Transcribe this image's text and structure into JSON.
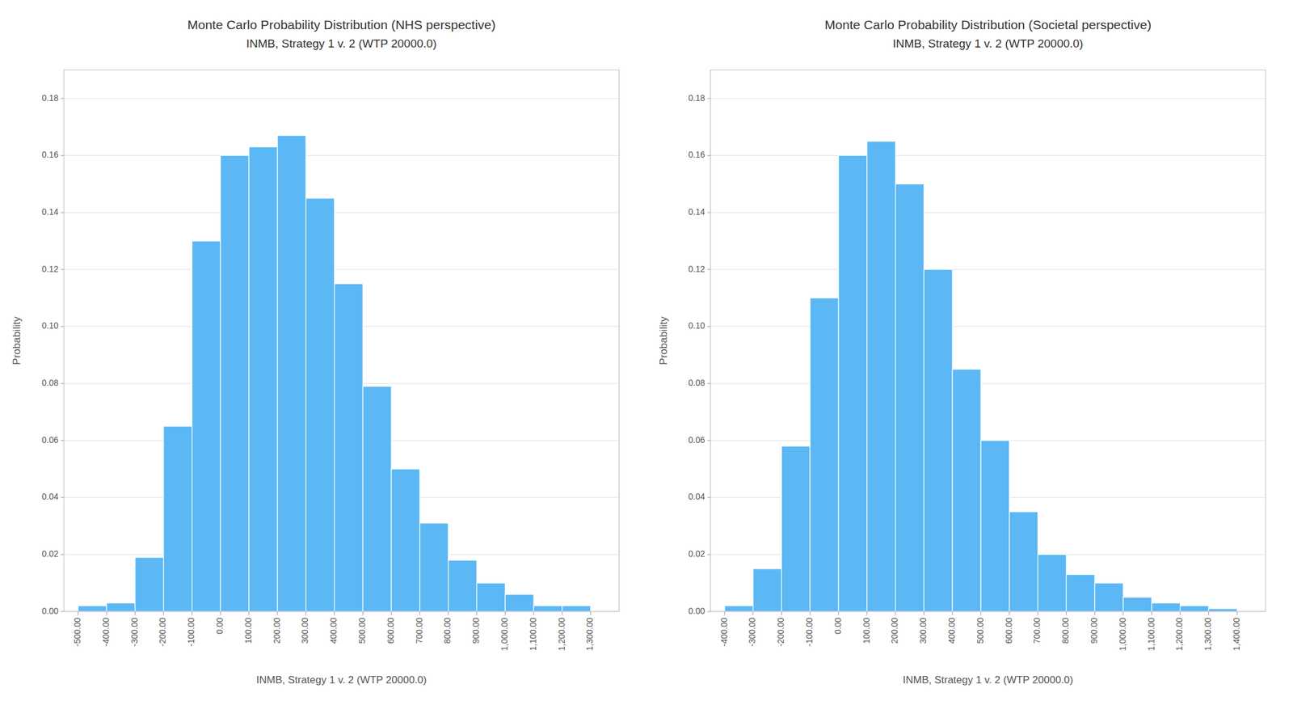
{
  "chart_data": [
    {
      "type": "histogram",
      "title": "Monte Carlo Probability Distribution (NHS perspective)",
      "subtitle": "INMB, Strategy 1 v. 2 (WTP 20000.0)",
      "x_label": "INMB, Strategy 1 v. 2 (WTP 20000.0)",
      "y_label": "Probability",
      "color": "#5BB8F5",
      "bins": [
        -500,
        -400,
        -300,
        -200,
        -100,
        0,
        100,
        200,
        300,
        400,
        500,
        600,
        700,
        800,
        900,
        1000,
        1100,
        1200,
        1300
      ],
      "values": [
        0.002,
        0.003,
        0.019,
        0.065,
        0.13,
        0.16,
        0.163,
        0.167,
        0.145,
        0.115,
        0.079,
        0.05,
        0.031,
        0.018,
        0.01,
        0.006,
        0.002,
        0.002
      ],
      "xlim": [
        -550,
        1400
      ],
      "ylim": [
        0,
        0.19
      ],
      "yticks": [
        {
          "value": 0.0,
          "label": "0.00"
        },
        {
          "value": 0.02,
          "label": "0.02"
        },
        {
          "value": 0.04,
          "label": "0.04"
        },
        {
          "value": 0.06,
          "label": "0.06"
        },
        {
          "value": 0.08,
          "label": "0.08"
        },
        {
          "value": 0.1,
          "label": "0.10"
        },
        {
          "value": 0.12,
          "label": "0.12"
        },
        {
          "value": 0.14,
          "label": "0.14"
        },
        {
          "value": 0.16,
          "label": "0.16"
        },
        {
          "value": 0.18,
          "label": "0.18"
        }
      ],
      "xticks": [
        {
          "value": -500,
          "label": "-500.00"
        },
        {
          "value": -400,
          "label": "-400.00"
        },
        {
          "value": -300,
          "label": "-300.00"
        },
        {
          "value": -200,
          "label": "-200.00"
        },
        {
          "value": -100,
          "label": "-100.00"
        },
        {
          "value": 0,
          "label": "0.00"
        },
        {
          "value": 100,
          "label": "100.00"
        },
        {
          "value": 200,
          "label": "200.00"
        },
        {
          "value": 300,
          "label": "300.00"
        },
        {
          "value": 400,
          "label": "400.00"
        },
        {
          "value": 500,
          "label": "500.00"
        },
        {
          "value": 600,
          "label": "600.00"
        },
        {
          "value": 700,
          "label": "700.00"
        },
        {
          "value": 800,
          "label": "800.00"
        },
        {
          "value": 900,
          "label": "900.00"
        },
        {
          "value": 1000,
          "label": "1,000.00"
        },
        {
          "value": 1100,
          "label": "1,100.00"
        },
        {
          "value": 1200,
          "label": "1,200.00"
        },
        {
          "value": 1300,
          "label": "1,300.00"
        }
      ],
      "grid": true
    },
    {
      "type": "histogram",
      "title": "Monte Carlo Probability Distribution (Societal perspective)",
      "subtitle": "INMB, Strategy 1 v. 2 (WTP 20000.0)",
      "x_label": "INMB, Strategy 1 v. 2 (WTP 20000.0)",
      "y_label": "Probability",
      "color": "#5BB8F5",
      "bins": [
        -400,
        -300,
        -200,
        -100,
        0,
        100,
        200,
        300,
        400,
        500,
        600,
        700,
        800,
        900,
        1000,
        1100,
        1200,
        1300,
        1400
      ],
      "values": [
        0.002,
        0.015,
        0.058,
        0.11,
        0.16,
        0.165,
        0.15,
        0.12,
        0.085,
        0.06,
        0.035,
        0.02,
        0.013,
        0.01,
        0.005,
        0.003,
        0.002,
        0.001
      ],
      "xlim": [
        -450,
        1500
      ],
      "ylim": [
        0,
        0.19
      ],
      "yticks": [
        {
          "value": 0.0,
          "label": "0.00"
        },
        {
          "value": 0.02,
          "label": "0.02"
        },
        {
          "value": 0.04,
          "label": "0.04"
        },
        {
          "value": 0.06,
          "label": "0.06"
        },
        {
          "value": 0.08,
          "label": "0.08"
        },
        {
          "value": 0.1,
          "label": "0.10"
        },
        {
          "value": 0.12,
          "label": "0.12"
        },
        {
          "value": 0.14,
          "label": "0.14"
        },
        {
          "value": 0.16,
          "label": "0.16"
        },
        {
          "value": 0.18,
          "label": "0.18"
        }
      ],
      "xticks": [
        {
          "value": -400,
          "label": "-400.00"
        },
        {
          "value": -300,
          "label": "-300.00"
        },
        {
          "value": -200,
          "label": "-200.00"
        },
        {
          "value": -100,
          "label": "-100.00"
        },
        {
          "value": 0,
          "label": "0.00"
        },
        {
          "value": 100,
          "label": "100.00"
        },
        {
          "value": 200,
          "label": "200.00"
        },
        {
          "value": 300,
          "label": "300.00"
        },
        {
          "value": 400,
          "label": "400.00"
        },
        {
          "value": 500,
          "label": "500.00"
        },
        {
          "value": 600,
          "label": "600.00"
        },
        {
          "value": 700,
          "label": "700.00"
        },
        {
          "value": 800,
          "label": "800.00"
        },
        {
          "value": 900,
          "label": "900.00"
        },
        {
          "value": 1000,
          "label": "1,000.00"
        },
        {
          "value": 1100,
          "label": "1,100.00"
        },
        {
          "value": 1200,
          "label": "1,200.00"
        },
        {
          "value": 1300,
          "label": "1,300.00"
        },
        {
          "value": 1400,
          "label": "1,400.00"
        }
      ],
      "grid": true
    }
  ]
}
